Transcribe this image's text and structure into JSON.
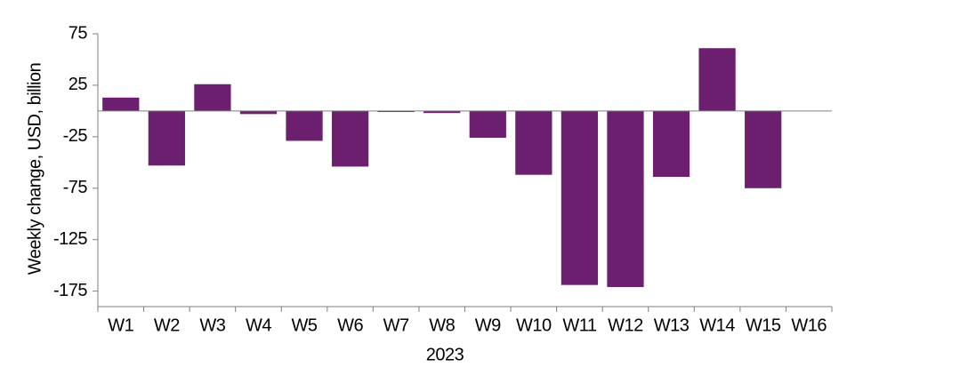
{
  "chart_data": {
    "type": "bar",
    "x_label": "2023",
    "y_label": "Weekly change, USD, billion",
    "categories": [
      "W1",
      "W2",
      "W3",
      "W4",
      "W5",
      "W6",
      "W7",
      "W8",
      "W9",
      "W10",
      "W11",
      "W12",
      "W13",
      "W14",
      "W15",
      "W16"
    ],
    "values": [
      13,
      -53,
      26,
      -3,
      -29,
      -54,
      -1,
      -2,
      -26,
      -62,
      -169,
      -171,
      -64,
      61,
      -75,
      null
    ],
    "color": "#6d1f6f",
    "ylim": [
      -190,
      75
    ],
    "yticks": [
      75,
      25,
      -25,
      -75,
      -125,
      -175
    ],
    "grid": false
  }
}
